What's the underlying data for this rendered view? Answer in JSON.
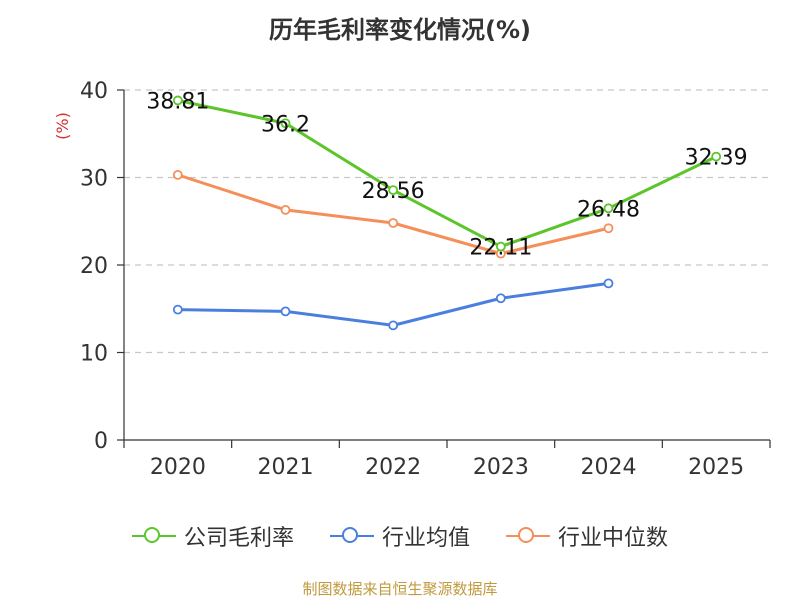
{
  "title": "历年毛利率变化情况(%)",
  "source": "制图数据来自恒生聚源数据库",
  "chart_data": {
    "type": "line",
    "title": "历年毛利率变化情况(%)",
    "ylabel": "(%)",
    "ylim": [
      0,
      40
    ],
    "yticks": [
      0,
      10,
      20,
      30,
      40
    ],
    "categories": [
      "2020",
      "2021",
      "2022",
      "2023",
      "2024",
      "2025"
    ],
    "grid": true,
    "legend_position": "bottom",
    "series": [
      {
        "name": "公司毛利率",
        "color": "#5bc52a",
        "values": [
          38.81,
          36.2,
          28.56,
          22.11,
          26.48,
          32.39
        ],
        "labels": [
          "38.81",
          "36.2",
          "28.56",
          "22.11",
          "26.48",
          "32.39"
        ]
      },
      {
        "name": "行业均值",
        "color": "#4a7fe0",
        "values": [
          14.9,
          14.7,
          13.1,
          16.2,
          17.9,
          null
        ]
      },
      {
        "name": "行业中位数",
        "color": "#f58f5a",
        "values": [
          30.3,
          26.3,
          24.8,
          21.3,
          24.2,
          null
        ]
      }
    ]
  }
}
